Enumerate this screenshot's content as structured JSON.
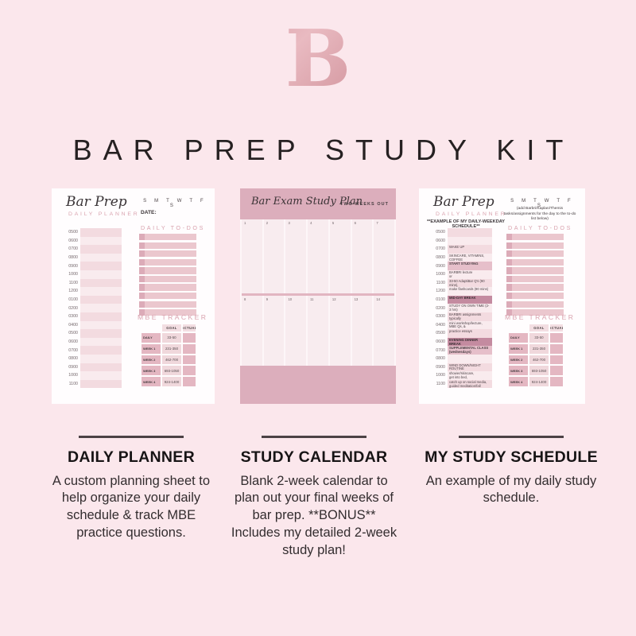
{
  "page": {
    "background": "#fbe7ec",
    "logo_letter": "B",
    "title": "BAR PREP STUDY KIT"
  },
  "colors": {
    "accent_pink": "#d9a2ae",
    "dusty_rose": "#dcaebc",
    "highlight_mauve": "#c48ba0",
    "dark_text": "#262122"
  },
  "daily_planner": {
    "script_title": "Bar Prep",
    "subtitle": "DAILY PLANNER",
    "week_days": "S M T W T F S",
    "date_label": "DATE:",
    "todos_title": "DAILY TO-DOS",
    "times": [
      "0500",
      "0600",
      "0700",
      "0800",
      "0900",
      "1000",
      "1100",
      "1200",
      "0100",
      "0200",
      "0300",
      "0400",
      "0500",
      "0600",
      "0700",
      "0800",
      "0900",
      "1000",
      "1100"
    ]
  },
  "study_calendar": {
    "script_title": "Bar Exam Study Plan",
    "tag": "TWO WEEKS OUT",
    "week1_days": [
      "1",
      "2",
      "3",
      "4",
      "5",
      "6",
      "7"
    ],
    "week2_days": [
      "8",
      "9",
      "10",
      "11",
      "12",
      "13",
      "14"
    ]
  },
  "my_schedule": {
    "script_title": "Bar Prep",
    "subtitle": "DAILY PLANNER",
    "example_note": "**EXAMPLE OF MY DAILY-WEEKDAY SCHEDULE**",
    "week_days": "S M T W T F S",
    "note": "(add Barbri/Kaplan/Themis tasks/assignments for the day to the to-do list below)",
    "todos_title": "DAILY TO-DOS",
    "schedule": [
      {
        "time": "0500",
        "lines": [],
        "style": "light"
      },
      {
        "time": "0600",
        "lines": [],
        "style": "light"
      },
      {
        "time": "0700",
        "lines": [
          "WAKE UP"
        ],
        "style": "light"
      },
      {
        "time": "0800",
        "lines": [
          "SKINCARE, VITAMINS, COFFEE"
        ],
        "style": "light"
      },
      {
        "time": "0900",
        "lines": [
          "START STUDYING"
        ],
        "style": "medium"
      },
      {
        "time": "1000",
        "lines": [
          "BARBRI lecture",
          "or"
        ],
        "style": "light"
      },
      {
        "time": "1100",
        "lines": [
          "33-50 AdaptiBar Q's (90 mins),",
          "review answers,"
        ],
        "style": "light"
      },
      {
        "time": "1200",
        "lines": [
          "make flashcards (90 mins)"
        ],
        "style": "light"
      },
      {
        "time": "0100",
        "lines": [
          "MID-DAY BREAK"
        ],
        "style": "dark"
      },
      {
        "time": "0200",
        "lines": [
          "STUDY ON OWN TIME (2-3 hrs)"
        ],
        "style": "light"
      },
      {
        "time": "0300",
        "lines": [
          "BARBRI assignments",
          "typically"
        ],
        "style": "light"
      },
      {
        "time": "0400",
        "lines": [
          "mini workshop/lecture,",
          "MBE Qs, &"
        ],
        "style": "light"
      },
      {
        "time": "0500",
        "lines": [
          "practice essays"
        ],
        "style": "light"
      },
      {
        "time": "0600",
        "lines": [
          "EVENING DINNER BREAK"
        ],
        "style": "dark"
      },
      {
        "time": "0700",
        "lines": [
          "SUPPLEMENTAL CLASS",
          "(wednesdays)"
        ],
        "style": "medium"
      },
      {
        "time": "0800",
        "lines": [],
        "style": "light"
      },
      {
        "time": "0900",
        "lines": [
          "WIND DOWN/NIGHT ROUTINE",
          "watch t.v.,"
        ],
        "style": "light"
      },
      {
        "time": "1000",
        "lines": [
          "shower/skincare,",
          "get into bed,"
        ],
        "style": "light"
      },
      {
        "time": "1100",
        "lines": [
          "catch up on social media,",
          "guided meditation/fall asleep"
        ],
        "style": "light"
      }
    ]
  },
  "mbe_tracker": {
    "title": "MBE TRACKER",
    "columns": [
      "GOAL",
      "ACTUAL"
    ],
    "rows": [
      {
        "label": "DAILY",
        "goal": "33-50",
        "actual": ""
      },
      {
        "label": "WEEK 1",
        "goal": "231-350",
        "actual": ""
      },
      {
        "label": "WEEK 2",
        "goal": "462-700",
        "actual": ""
      },
      {
        "label": "WEEK 3",
        "goal": "693-1050",
        "actual": ""
      },
      {
        "label": "WEEK 4",
        "goal": "924-1400",
        "actual": ""
      }
    ]
  },
  "captions": [
    {
      "heading": "DAILY PLANNER",
      "body": "A custom planning sheet to help organize your daily schedule & track MBE practice questions."
    },
    {
      "heading": "STUDY CALENDAR",
      "body": "Blank 2-week calendar to plan out your final weeks of bar prep. **BONUS** Includes my detailed 2-week study plan!"
    },
    {
      "heading": "MY STUDY SCHEDULE",
      "body": "An example of my daily study schedule."
    }
  ]
}
